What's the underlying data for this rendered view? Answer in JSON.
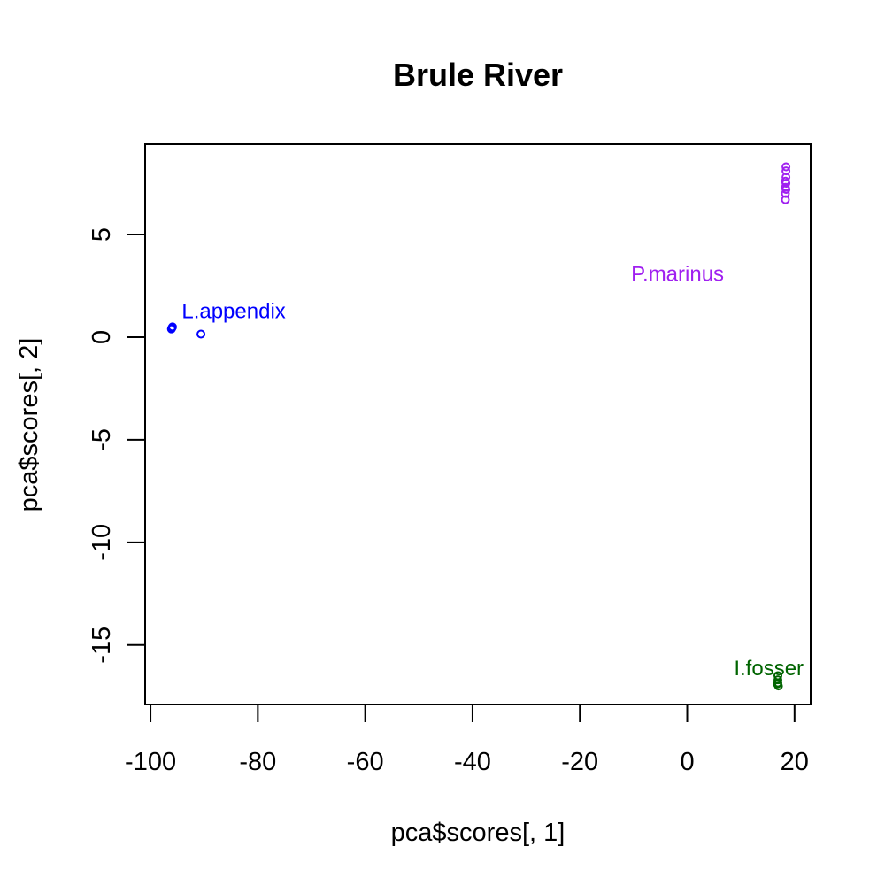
{
  "chart_data": {
    "type": "scatter",
    "title": "Brule River",
    "xlabel": "pca$scores[, 1]",
    "ylabel": "pca$scores[, 2]",
    "xlim": [
      -101,
      23
    ],
    "ylim": [
      -17.9,
      9.4
    ],
    "xticks": [
      -100,
      -80,
      -60,
      -40,
      -20,
      0,
      20
    ],
    "yticks": [
      -15,
      -10,
      -5,
      0,
      5
    ],
    "grid": false,
    "legend": "none",
    "series": [
      {
        "color": "#0000ff",
        "marker": "open-circle",
        "points": [
          {
            "x": -96.0,
            "y": 0.45
          },
          {
            "x": -96.1,
            "y": 0.4
          },
          {
            "x": -95.9,
            "y": 0.5
          },
          {
            "x": -90.6,
            "y": 0.15
          }
        ]
      },
      {
        "color": "#a020f0",
        "marker": "open-circle",
        "points": [
          {
            "x": 18.4,
            "y": 8.3
          },
          {
            "x": 18.4,
            "y": 8.1
          },
          {
            "x": 18.4,
            "y": 7.8
          },
          {
            "x": 18.3,
            "y": 7.6
          },
          {
            "x": 18.4,
            "y": 7.5
          },
          {
            "x": 18.3,
            "y": 7.3
          },
          {
            "x": 18.4,
            "y": 7.2
          },
          {
            "x": 18.3,
            "y": 7.0
          },
          {
            "x": 18.3,
            "y": 6.7
          }
        ]
      },
      {
        "color": "#006400",
        "marker": "open-circle",
        "points": [
          {
            "x": 16.9,
            "y": -16.5
          },
          {
            "x": 16.9,
            "y": -16.7
          },
          {
            "x": 16.9,
            "y": -16.85
          },
          {
            "x": 17.0,
            "y": -17.0
          },
          {
            "x": 16.8,
            "y": -16.9
          }
        ]
      }
    ],
    "annotations": [
      {
        "text": "L.appendix",
        "x": -84.5,
        "y": 1.2,
        "color": "#0000ff"
      },
      {
        "text": "P.marinus",
        "x": -1.8,
        "y": 3.0,
        "color": "#a020f0"
      },
      {
        "text": "I.fosser",
        "x": 15.2,
        "y": -16.2,
        "color": "#006400"
      }
    ]
  }
}
